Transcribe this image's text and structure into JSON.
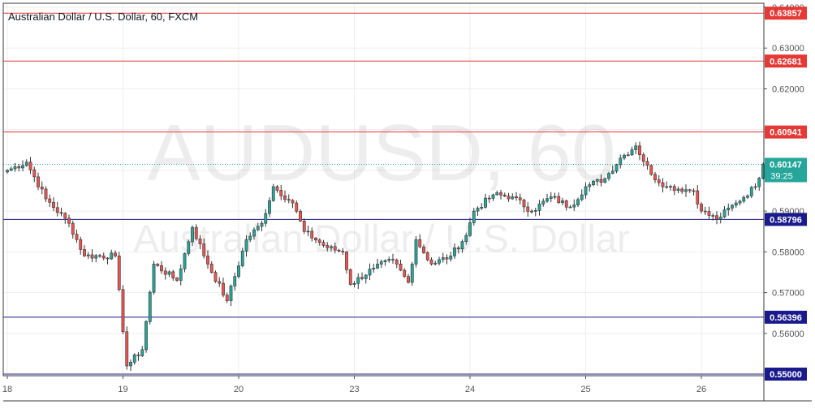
{
  "chart_data": {
    "type": "candlestick",
    "title": "Australian Dollar / U.S. Dollar, 60, FXCM",
    "watermark": {
      "symbol": "AUDUSD, 60",
      "name": "Australian Dollar / U.S. Dollar"
    },
    "ylim": [
      0.5496,
      0.641
    ],
    "y_ticks": [
      "0.64000",
      "0.63000",
      "0.62000",
      "0.61000",
      "0.60000",
      "0.59000",
      "0.58000",
      "0.57000",
      "0.56000"
    ],
    "y_tick_values": [
      0.64,
      0.63,
      0.62,
      0.61,
      0.6,
      0.59,
      0.58,
      0.57,
      0.56
    ],
    "x_labels": [
      {
        "label": "18",
        "bar": 0
      },
      {
        "label": "19",
        "bar": 30
      },
      {
        "label": "20",
        "bar": 60
      },
      {
        "label": "23",
        "bar": 90
      },
      {
        "label": "24",
        "bar": 120
      },
      {
        "label": "25",
        "bar": 150
      },
      {
        "label": "26",
        "bar": 180
      }
    ],
    "levels": [
      {
        "value": 0.63857,
        "label": "0.63857",
        "color": "#e53935"
      },
      {
        "value": 0.62681,
        "label": "0.62681",
        "color": "#e53935"
      },
      {
        "value": 0.60941,
        "label": "0.60941",
        "color": "#e53935"
      },
      {
        "value": 0.58796,
        "label": "0.58796",
        "color": "#1a1a8c"
      },
      {
        "value": 0.56396,
        "label": "0.56396",
        "color": "#1a1a8c"
      },
      {
        "value": 0.55,
        "label": "0.55000",
        "color": "#1a1a8c"
      }
    ],
    "last_price": {
      "value": 0.60147,
      "label": "0.60147",
      "countdown": "39:25",
      "color": "#26a69a"
    },
    "colors": {
      "up": "#26a69a",
      "down": "#ef5350",
      "border": "#3a3a3a",
      "grid": "#eeeeee"
    },
    "anchors": [
      {
        "bar": 0,
        "price": 0.6
      },
      {
        "bar": 5,
        "price": 0.602
      },
      {
        "bar": 10,
        "price": 0.593
      },
      {
        "bar": 16,
        "price": 0.587
      },
      {
        "bar": 20,
        "price": 0.579
      },
      {
        "bar": 28,
        "price": 0.579
      },
      {
        "bar": 31,
        "price": 0.552
      },
      {
        "bar": 35,
        "price": 0.556
      },
      {
        "bar": 38,
        "price": 0.577
      },
      {
        "bar": 44,
        "price": 0.573
      },
      {
        "bar": 48,
        "price": 0.586
      },
      {
        "bar": 52,
        "price": 0.577
      },
      {
        "bar": 57,
        "price": 0.568
      },
      {
        "bar": 62,
        "price": 0.583
      },
      {
        "bar": 66,
        "price": 0.587
      },
      {
        "bar": 69,
        "price": 0.596
      },
      {
        "bar": 74,
        "price": 0.592
      },
      {
        "bar": 77,
        "price": 0.585
      },
      {
        "bar": 83,
        "price": 0.581
      },
      {
        "bar": 87,
        "price": 0.58
      },
      {
        "bar": 89,
        "price": 0.572
      },
      {
        "bar": 95,
        "price": 0.576
      },
      {
        "bar": 100,
        "price": 0.578
      },
      {
        "bar": 104,
        "price": 0.5725
      },
      {
        "bar": 106,
        "price": 0.583
      },
      {
        "bar": 110,
        "price": 0.577
      },
      {
        "bar": 115,
        "price": 0.579
      },
      {
        "bar": 119,
        "price": 0.584
      },
      {
        "bar": 121,
        "price": 0.59
      },
      {
        "bar": 126,
        "price": 0.594
      },
      {
        "bar": 131,
        "price": 0.5935
      },
      {
        "bar": 136,
        "price": 0.59
      },
      {
        "bar": 141,
        "price": 0.5935
      },
      {
        "bar": 146,
        "price": 0.591
      },
      {
        "bar": 150,
        "price": 0.596
      },
      {
        "bar": 155,
        "price": 0.598
      },
      {
        "bar": 159,
        "price": 0.603
      },
      {
        "bar": 163,
        "price": 0.606
      },
      {
        "bar": 167,
        "price": 0.599
      },
      {
        "bar": 171,
        "price": 0.596
      },
      {
        "bar": 178,
        "price": 0.595
      },
      {
        "bar": 180,
        "price": 0.59
      },
      {
        "bar": 184,
        "price": 0.588
      },
      {
        "bar": 189,
        "price": 0.592
      },
      {
        "bar": 194,
        "price": 0.596
      },
      {
        "bar": 196,
        "price": 0.6015
      }
    ]
  }
}
